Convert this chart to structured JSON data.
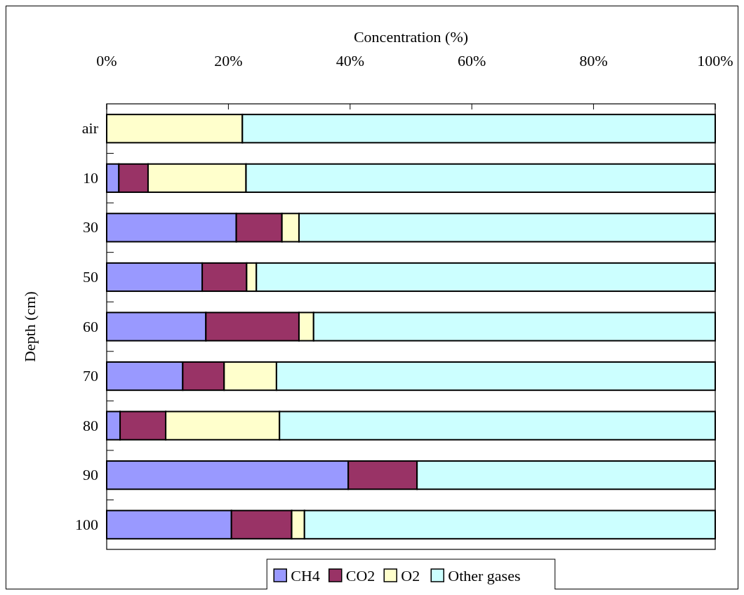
{
  "chart_data": {
    "type": "bar",
    "orientation": "horizontal",
    "stacked": true,
    "xlabel": "Concentration (%)",
    "ylabel": "Depth (cm)",
    "categories": [
      "air",
      "10",
      "30",
      "50",
      "60",
      "70",
      "80",
      "90",
      "100"
    ],
    "xlim": [
      0,
      100
    ],
    "xticks": [
      {
        "value": 0,
        "label": "0%"
      },
      {
        "value": 20,
        "label": "20%"
      },
      {
        "value": 40,
        "label": "40%"
      },
      {
        "value": 60,
        "label": "60%"
      },
      {
        "value": 80,
        "label": "80%"
      },
      {
        "value": 100,
        "label": "100%"
      }
    ],
    "series": [
      {
        "name": "CH4",
        "color": "#9999ff",
        "values": [
          0,
          2.0,
          21.3,
          15.7,
          16.3,
          12.5,
          2.2,
          39.7,
          20.5
        ]
      },
      {
        "name": "CO2",
        "color": "#993366",
        "values": [
          0,
          4.8,
          7.5,
          7.3,
          15.3,
          6.8,
          7.5,
          11.3,
          9.9
        ]
      },
      {
        "name": "O2",
        "color": "#ffffcc",
        "values": [
          22.3,
          16.1,
          2.8,
          1.6,
          2.4,
          8.6,
          18.7,
          0,
          2.1
        ]
      },
      {
        "name": "Other gases",
        "color": "#ccffff",
        "values": [
          77.7,
          77.1,
          68.4,
          75.4,
          66.0,
          72.1,
          71.6,
          49.0,
          67.5
        ]
      }
    ],
    "legend": "bottom",
    "grid": false
  }
}
